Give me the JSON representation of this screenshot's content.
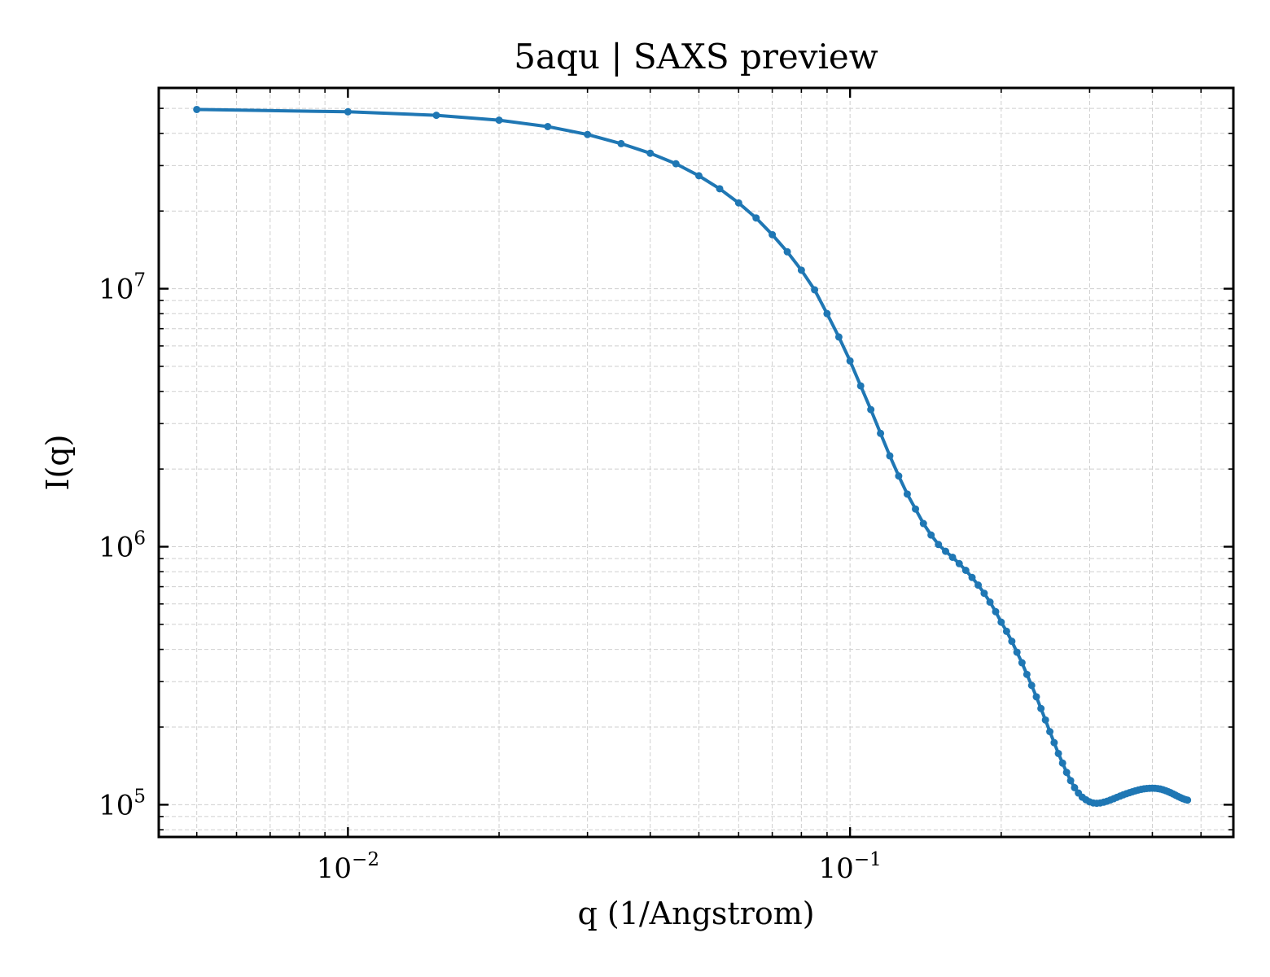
{
  "chart_data": {
    "type": "line",
    "title": "5aqu | SAXS preview",
    "xlabel": "q (1/Angstrom)",
    "ylabel": "I(q)",
    "xscale": "log",
    "yscale": "log",
    "xlim": [
      0.0042,
      0.58
    ],
    "ylim": [
      75000,
      60000000
    ],
    "grid": true,
    "grid_which": "both",
    "legend": "none",
    "markers": true,
    "color": "#1f77b4",
    "x_ticks": [
      {
        "base": "10",
        "exp": "−2",
        "value": 0.01
      },
      {
        "base": "10",
        "exp": "−1",
        "value": 0.1
      }
    ],
    "y_ticks": [
      {
        "base": "10",
        "exp": "5",
        "value": 100000
      },
      {
        "base": "10",
        "exp": "6",
        "value": 1000000
      },
      {
        "base": "10",
        "exp": "7",
        "value": 10000000
      }
    ],
    "series": [
      {
        "points": [
          [
            0.005,
            49500000
          ],
          [
            0.01,
            48500000
          ],
          [
            0.015,
            47000000
          ],
          [
            0.02,
            45000000
          ],
          [
            0.025,
            42500000
          ],
          [
            0.03,
            39600000
          ],
          [
            0.035,
            36500000
          ],
          [
            0.04,
            33500000
          ],
          [
            0.045,
            30500000
          ],
          [
            0.05,
            27400000
          ],
          [
            0.055,
            24400000
          ],
          [
            0.06,
            21500000
          ],
          [
            0.065,
            18800000
          ],
          [
            0.07,
            16200000
          ],
          [
            0.075,
            13900000
          ],
          [
            0.08,
            11800000
          ],
          [
            0.085,
            9900000
          ],
          [
            0.09,
            8000000
          ],
          [
            0.095,
            6500000
          ],
          [
            0.1,
            5250000
          ],
          [
            0.105,
            4200000
          ],
          [
            0.11,
            3400000
          ],
          [
            0.115,
            2750000
          ],
          [
            0.12,
            2250000
          ],
          [
            0.125,
            1880000
          ],
          [
            0.13,
            1600000
          ],
          [
            0.135,
            1400000
          ],
          [
            0.14,
            1230000
          ],
          [
            0.145,
            1110000
          ],
          [
            0.15,
            1020000
          ],
          [
            0.155,
            960000
          ],
          [
            0.16,
            910000
          ],
          [
            0.165,
            860000
          ],
          [
            0.17,
            810000
          ],
          [
            0.175,
            760000
          ],
          [
            0.18,
            710000
          ],
          [
            0.185,
            660000
          ],
          [
            0.19,
            610000
          ],
          [
            0.195,
            560000
          ],
          [
            0.2,
            510000
          ],
          [
            0.205,
            470000
          ],
          [
            0.21,
            430000
          ],
          [
            0.215,
            390000
          ],
          [
            0.22,
            355000
          ],
          [
            0.225,
            320000
          ],
          [
            0.23,
            290000
          ],
          [
            0.235,
            262000
          ],
          [
            0.24,
            236000
          ],
          [
            0.245,
            213000
          ],
          [
            0.25,
            192000
          ],
          [
            0.255,
            174000
          ],
          [
            0.26,
            158000
          ],
          [
            0.265,
            145000
          ],
          [
            0.27,
            133500
          ],
          [
            0.275,
            124000
          ],
          [
            0.28,
            116500
          ],
          [
            0.285,
            111000
          ],
          [
            0.29,
            107000
          ],
          [
            0.295,
            104500
          ],
          [
            0.3,
            102600
          ],
          [
            0.305,
            101600
          ],
          [
            0.31,
            101300
          ],
          [
            0.315,
            101600
          ],
          [
            0.32,
            102300
          ],
          [
            0.325,
            103200
          ],
          [
            0.33,
            104300
          ],
          [
            0.335,
            105500
          ],
          [
            0.34,
            106800
          ],
          [
            0.345,
            108000
          ],
          [
            0.35,
            109200
          ],
          [
            0.355,
            110300
          ],
          [
            0.36,
            111300
          ],
          [
            0.365,
            112300
          ],
          [
            0.37,
            113200
          ],
          [
            0.375,
            114000
          ],
          [
            0.38,
            114700
          ],
          [
            0.385,
            115200
          ],
          [
            0.39,
            115600
          ],
          [
            0.395,
            115800
          ],
          [
            0.4,
            115900
          ],
          [
            0.405,
            115800
          ],
          [
            0.41,
            115500
          ],
          [
            0.415,
            115000
          ],
          [
            0.42,
            114300
          ],
          [
            0.425,
            113400
          ],
          [
            0.43,
            112400
          ],
          [
            0.435,
            111300
          ],
          [
            0.44,
            110100
          ],
          [
            0.445,
            108900
          ],
          [
            0.45,
            107700
          ],
          [
            0.455,
            106600
          ],
          [
            0.46,
            105600
          ],
          [
            0.465,
            104800
          ],
          [
            0.47,
            104200
          ]
        ]
      }
    ]
  }
}
